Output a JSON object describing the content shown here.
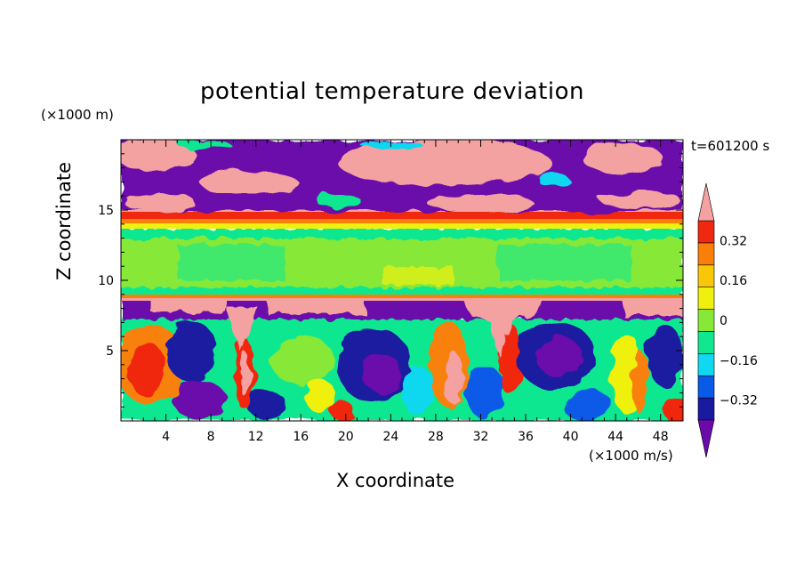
{
  "chart_data": {
    "type": "heatmap",
    "title": "potential temperature deviation",
    "xlabel": "X coordinate",
    "ylabel": "Z coordinate",
    "x_unit": "(×1000 m/s)",
    "y_unit": "(×1000 m)",
    "annotation": "t=601200 s",
    "x_range": [
      0,
      50
    ],
    "y_range": [
      0,
      20
    ],
    "x_ticks": [
      4,
      8,
      12,
      16,
      20,
      24,
      28,
      32,
      36,
      40,
      44,
      48
    ],
    "y_ticks": [
      5,
      10,
      15
    ],
    "colorbar": {
      "labels": [
        "0.32",
        "0.16",
        "0",
        "−0.16",
        "−0.32"
      ],
      "label_values": [
        0.32,
        0.16,
        0,
        -0.16,
        -0.32
      ],
      "levels": [
        -0.4,
        -0.32,
        -0.24,
        -0.16,
        -0.08,
        0,
        0.08,
        0.16,
        0.24,
        0.32,
        0.4
      ],
      "colors": [
        "#6a0aab",
        "#1a1aa0",
        "#0a5ae8",
        "#10d8f0",
        "#10e890",
        "#88e838",
        "#f0f010",
        "#f8c808",
        "#f88008",
        "#f02810",
        "#f3a1a1"
      ],
      "extend": "both"
    },
    "bands": [
      {
        "z_range": [
          17,
          20
        ],
        "description": "mostly large negative (purple) with pink patches"
      },
      {
        "z_range": [
          14,
          15
        ],
        "description": "strong positive (red/orange)"
      },
      {
        "z_range": [
          9,
          13.5
        ],
        "description": "near zero (green)"
      },
      {
        "z_range": [
          7.5,
          8.8
        ],
        "description": "purple/pink alternating"
      },
      {
        "z_range": [
          0,
          7.5
        ],
        "description": "turbulent mixed values from -0.4 to 0.4"
      }
    ]
  }
}
